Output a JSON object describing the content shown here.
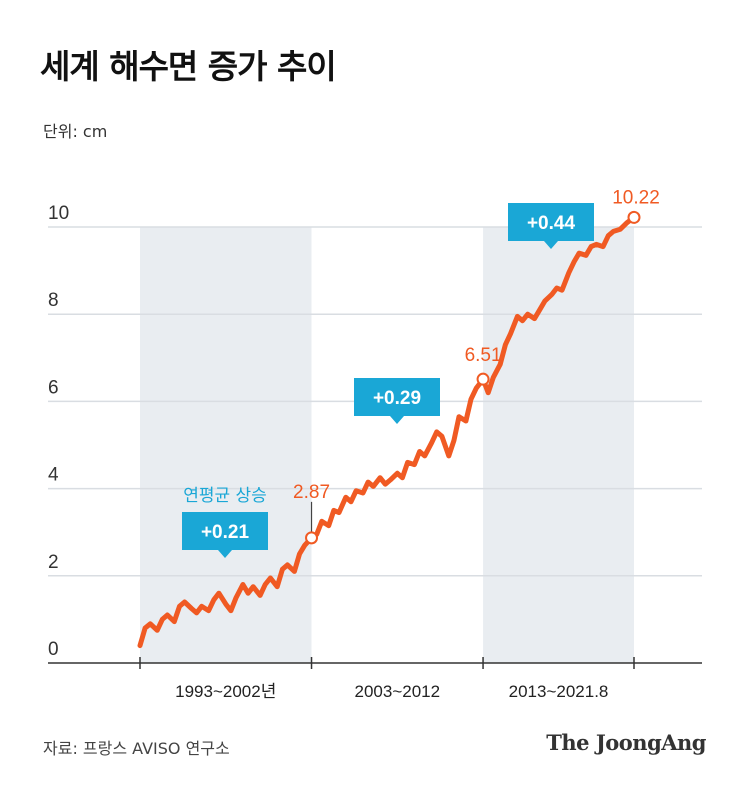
{
  "title": "세계 해수면 증가 추이",
  "unit_label": "단위: cm",
  "source": "자료: 프랑스 AVISO 연구소",
  "logo": "The JoongAng",
  "colors": {
    "line": "#f05a23",
    "band": "#e9edf1",
    "badge": "#1aa7d6",
    "annotation_text": "#1aa7d6",
    "axis_text": "#333333"
  },
  "chart_data": {
    "type": "line",
    "title": "세계 해수면 증가 추이",
    "ylabel": "단위: cm",
    "ylim": [
      0,
      10
    ],
    "yticks": [
      0,
      2,
      4,
      6,
      8,
      10
    ],
    "x_range": [
      1993,
      2021.8
    ],
    "periods": [
      {
        "label": "1993~2002년",
        "start": 1993,
        "end": 2003,
        "shaded": true,
        "rate": "+0.21"
      },
      {
        "label": "2003~2012",
        "start": 2003,
        "end": 2013,
        "shaded": false,
        "rate": "+0.29"
      },
      {
        "label": "2013~2021.8",
        "start": 2013,
        "end": 2021.8,
        "shaded": true,
        "rate": "+0.44"
      }
    ],
    "rate_caption": "연평균 상승",
    "markers": [
      {
        "x": 2003,
        "y": 2.87,
        "label": "2.87"
      },
      {
        "x": 2013,
        "y": 6.51,
        "label": "6.51"
      },
      {
        "x": 2021.8,
        "y": 10.22,
        "label": "10.22"
      }
    ],
    "series": [
      {
        "values": [
          [
            1993.0,
            0.4
          ],
          [
            1993.3,
            0.8
          ],
          [
            1993.6,
            0.9
          ],
          [
            1994.0,
            0.75
          ],
          [
            1994.3,
            1.0
          ],
          [
            1994.6,
            1.1
          ],
          [
            1995.0,
            0.95
          ],
          [
            1995.3,
            1.3
          ],
          [
            1995.6,
            1.4
          ],
          [
            1996.0,
            1.25
          ],
          [
            1996.3,
            1.15
          ],
          [
            1996.6,
            1.3
          ],
          [
            1997.0,
            1.2
          ],
          [
            1997.3,
            1.45
          ],
          [
            1997.6,
            1.6
          ],
          [
            1998.0,
            1.35
          ],
          [
            1998.3,
            1.2
          ],
          [
            1998.6,
            1.5
          ],
          [
            1999.0,
            1.8
          ],
          [
            1999.3,
            1.6
          ],
          [
            1999.6,
            1.75
          ],
          [
            2000.0,
            1.55
          ],
          [
            2000.3,
            1.8
          ],
          [
            2000.6,
            1.95
          ],
          [
            2001.0,
            1.75
          ],
          [
            2001.3,
            2.15
          ],
          [
            2001.6,
            2.25
          ],
          [
            2002.0,
            2.1
          ],
          [
            2002.3,
            2.5
          ],
          [
            2002.6,
            2.7
          ],
          [
            2003.0,
            2.87
          ],
          [
            2003.3,
            2.95
          ],
          [
            2003.6,
            3.25
          ],
          [
            2004.0,
            3.15
          ],
          [
            2004.3,
            3.5
          ],
          [
            2004.6,
            3.45
          ],
          [
            2005.0,
            3.8
          ],
          [
            2005.3,
            3.7
          ],
          [
            2005.6,
            3.95
          ],
          [
            2006.0,
            3.9
          ],
          [
            2006.3,
            4.15
          ],
          [
            2006.6,
            4.05
          ],
          [
            2007.0,
            4.25
          ],
          [
            2007.3,
            4.1
          ],
          [
            2007.6,
            4.2
          ],
          [
            2008.0,
            4.35
          ],
          [
            2008.3,
            4.25
          ],
          [
            2008.6,
            4.6
          ],
          [
            2009.0,
            4.55
          ],
          [
            2009.3,
            4.85
          ],
          [
            2009.6,
            4.75
          ],
          [
            2010.0,
            5.05
          ],
          [
            2010.3,
            5.3
          ],
          [
            2010.6,
            5.2
          ],
          [
            2011.0,
            4.75
          ],
          [
            2011.3,
            5.1
          ],
          [
            2011.6,
            5.65
          ],
          [
            2012.0,
            5.55
          ],
          [
            2012.3,
            6.05
          ],
          [
            2012.6,
            6.3
          ],
          [
            2013.0,
            6.51
          ],
          [
            2013.3,
            6.2
          ],
          [
            2013.6,
            6.55
          ],
          [
            2014.0,
            6.85
          ],
          [
            2014.3,
            7.3
          ],
          [
            2014.6,
            7.55
          ],
          [
            2015.0,
            7.95
          ],
          [
            2015.3,
            7.85
          ],
          [
            2015.6,
            8.0
          ],
          [
            2016.0,
            7.9
          ],
          [
            2016.3,
            8.1
          ],
          [
            2016.6,
            8.3
          ],
          [
            2017.0,
            8.45
          ],
          [
            2017.3,
            8.6
          ],
          [
            2017.6,
            8.55
          ],
          [
            2018.0,
            8.95
          ],
          [
            2018.3,
            9.2
          ],
          [
            2018.6,
            9.4
          ],
          [
            2019.0,
            9.35
          ],
          [
            2019.3,
            9.55
          ],
          [
            2019.6,
            9.6
          ],
          [
            2020.0,
            9.55
          ],
          [
            2020.3,
            9.8
          ],
          [
            2020.6,
            9.9
          ],
          [
            2021.0,
            9.95
          ],
          [
            2021.4,
            10.1
          ],
          [
            2021.8,
            10.22
          ]
        ]
      }
    ]
  }
}
